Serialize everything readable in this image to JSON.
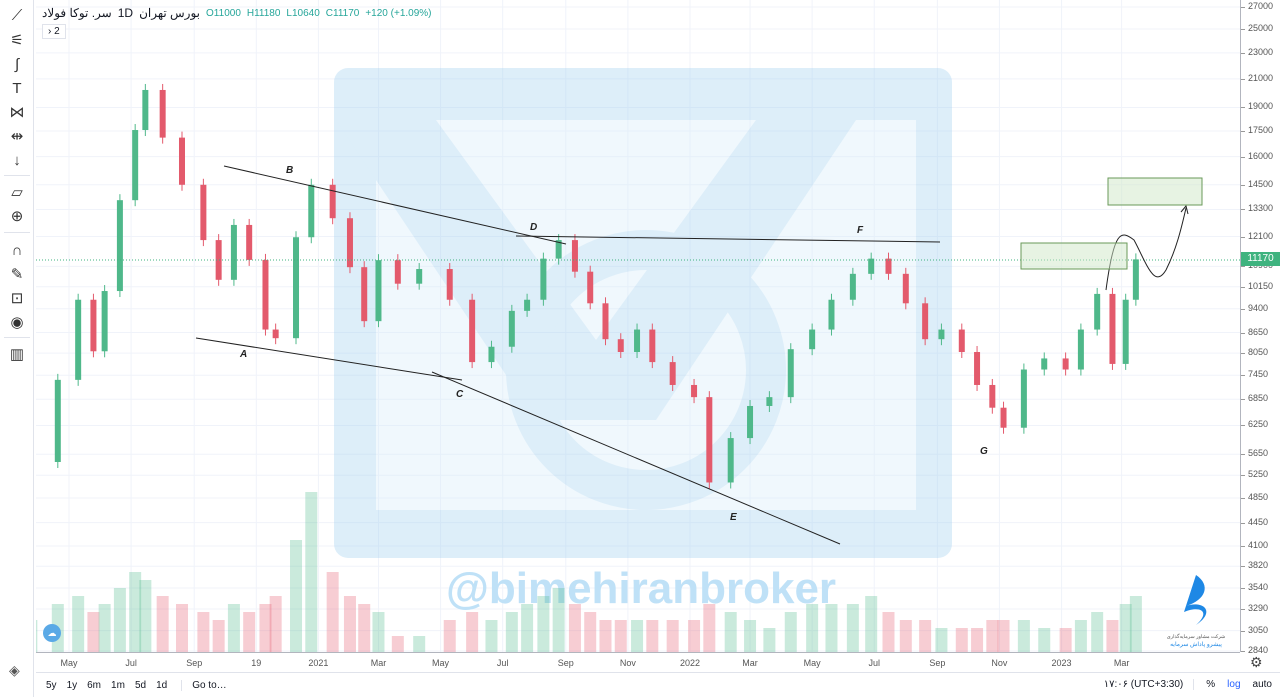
{
  "legend": {
    "symbol": "سر. توکا فولاد",
    "interval": "1D",
    "exchange": "بورس تهران",
    "open": "O11000",
    "high": "H11180",
    "low": "L10640",
    "close": "C11170",
    "change": "+120 (+1.09%)",
    "collapse": "› 2"
  },
  "toolbar": {
    "icons": [
      "trend-line-icon",
      "fib-icon",
      "brush-icon",
      "text-icon",
      "pattern-icon",
      "prediction-icon",
      "arrow-down-icon",
      "ruler-icon",
      "zoom-in-icon",
      "magnet-icon",
      "lock-drawing-icon",
      "lock-icon",
      "eye-icon",
      "trash-icon"
    ]
  },
  "watermark": {
    "handle": "@bimehiranbroker"
  },
  "logo": {
    "text": "شرکت مشاور سرمایه‌گذاری پیشرو پاداش سرمایه"
  },
  "bottom": {
    "ranges": [
      "5y",
      "1y",
      "6m",
      "1m",
      "5d",
      "1d"
    ],
    "goto": "Go to…",
    "clock": "۱۷:۰۶ (UTC+3:30)",
    "percent": "%",
    "log": "log",
    "auto": "auto"
  },
  "colors": {
    "up": "#4fb88a",
    "down": "#e35a6c",
    "accent": "#2962ff",
    "last": "#3fb37f"
  },
  "chart_data": {
    "type": "candlestick",
    "scale": "log",
    "ylim": [
      2840,
      27000
    ],
    "y_ticks": [
      27000,
      25000,
      23000,
      21000,
      19000,
      17500,
      16000,
      14500,
      13300,
      12100,
      10900,
      10150,
      9400,
      8650,
      8050,
      7450,
      6850,
      6250,
      5650,
      5250,
      4850,
      4450,
      4100,
      3820,
      3540,
      3290,
      3050,
      2840
    ],
    "last_price": "11170",
    "x_ticks": [
      {
        "label": "May",
        "date": "2020-05-01"
      },
      {
        "label": "Jul",
        "date": "2020-07-01"
      },
      {
        "label": "Sep",
        "date": "2020-09-01"
      },
      {
        "label": "19",
        "date": "2020-11-01"
      },
      {
        "label": "2021",
        "date": "2021-01-01"
      },
      {
        "label": "Mar",
        "date": "2021-03-01"
      },
      {
        "label": "May",
        "date": "2021-05-01"
      },
      {
        "label": "Jul",
        "date": "2021-07-01"
      },
      {
        "label": "Sep",
        "date": "2021-09-01"
      },
      {
        "label": "Nov",
        "date": "2021-11-01"
      },
      {
        "label": "2022",
        "date": "2022-01-01"
      },
      {
        "label": "Mar",
        "date": "2022-03-01"
      },
      {
        "label": "May",
        "date": "2022-05-01"
      },
      {
        "label": "Jul",
        "date": "2022-07-01"
      },
      {
        "label": "Sep",
        "date": "2022-09-01"
      },
      {
        "label": "Nov",
        "date": "2022-11-01"
      },
      {
        "label": "2023",
        "date": "2023-01-01"
      },
      {
        "label": "Mar",
        "date": "2023-03-01"
      }
    ],
    "closes": [
      [
        "2020-03-25",
        5500,
        0.2
      ],
      [
        "2020-04-20",
        7330,
        0.3
      ],
      [
        "2020-05-10",
        9700,
        0.35
      ],
      [
        "2020-05-25",
        8100,
        0.25
      ],
      [
        "2020-06-05",
        10000,
        0.3
      ],
      [
        "2020-06-20",
        13740,
        0.4
      ],
      [
        "2020-07-05",
        17560,
        0.5
      ],
      [
        "2020-07-15",
        20200,
        0.45
      ],
      [
        "2020-08-01",
        17100,
        0.35
      ],
      [
        "2020-08-20",
        14500,
        0.3
      ],
      [
        "2020-09-10",
        11950,
        0.25
      ],
      [
        "2020-09-25",
        10400,
        0.2
      ],
      [
        "2020-10-10",
        12600,
        0.3
      ],
      [
        "2020-10-25",
        11150,
        0.25
      ],
      [
        "2020-11-10",
        8740,
        0.3
      ],
      [
        "2020-11-20",
        8480,
        0.35
      ],
      [
        "2020-12-10",
        12070,
        0.7
      ],
      [
        "2020-12-25",
        14500,
        1.0
      ],
      [
        "2021-01-15",
        12900,
        0.5
      ],
      [
        "2021-02-01",
        10870,
        0.35
      ],
      [
        "2021-02-15",
        9000,
        0.3
      ],
      [
        "2021-03-01",
        11140,
        0.25
      ],
      [
        "2021-03-20",
        10260,
        0.1
      ],
      [
        "2021-04-10",
        10800,
        0.1
      ],
      [
        "2021-05-10",
        9700,
        0.2
      ],
      [
        "2021-06-01",
        7800,
        0.25
      ],
      [
        "2021-06-20",
        8230,
        0.2
      ],
      [
        "2021-07-10",
        9330,
        0.25
      ],
      [
        "2021-07-25",
        9700,
        0.3
      ],
      [
        "2021-08-10",
        11200,
        0.35
      ],
      [
        "2021-08-25",
        11950,
        0.4
      ],
      [
        "2021-09-10",
        10700,
        0.3
      ],
      [
        "2021-09-25",
        9580,
        0.25
      ],
      [
        "2021-10-10",
        8450,
        0.2
      ],
      [
        "2021-10-25",
        8080,
        0.2
      ],
      [
        "2021-11-10",
        8740,
        0.2
      ],
      [
        "2021-11-25",
        7800,
        0.2
      ],
      [
        "2021-12-15",
        7200,
        0.2
      ],
      [
        "2022-01-05",
        6900,
        0.2
      ],
      [
        "2022-01-20",
        5120,
        0.3
      ],
      [
        "2022-02-10",
        5980,
        0.25
      ],
      [
        "2022-03-01",
        6690,
        0.2
      ],
      [
        "2022-03-20",
        6900,
        0.15
      ],
      [
        "2022-04-10",
        8160,
        0.25
      ],
      [
        "2022-05-01",
        8740,
        0.3
      ],
      [
        "2022-05-20",
        9700,
        0.3
      ],
      [
        "2022-06-10",
        10620,
        0.3
      ],
      [
        "2022-06-28",
        11200,
        0.35
      ],
      [
        "2022-07-15",
        10620,
        0.25
      ],
      [
        "2022-08-01",
        9580,
        0.2
      ],
      [
        "2022-08-20",
        8450,
        0.2
      ],
      [
        "2022-09-05",
        8740,
        0.15
      ],
      [
        "2022-09-25",
        8080,
        0.15
      ],
      [
        "2022-10-10",
        7200,
        0.15
      ],
      [
        "2022-10-25",
        6650,
        0.2
      ],
      [
        "2022-11-05",
        6200,
        0.2
      ],
      [
        "2022-11-25",
        7600,
        0.2
      ],
      [
        "2022-12-15",
        7900,
        0.15
      ],
      [
        "2023-01-05",
        7600,
        0.15
      ],
      [
        "2023-01-20",
        8740,
        0.2
      ],
      [
        "2023-02-05",
        9900,
        0.25
      ],
      [
        "2023-02-20",
        7750,
        0.2
      ],
      [
        "2023-03-05",
        9700,
        0.3
      ],
      [
        "2023-03-15",
        11170,
        0.35
      ]
    ],
    "annotations": [
      "A",
      "B",
      "C",
      "D",
      "E",
      "F",
      "G"
    ]
  }
}
